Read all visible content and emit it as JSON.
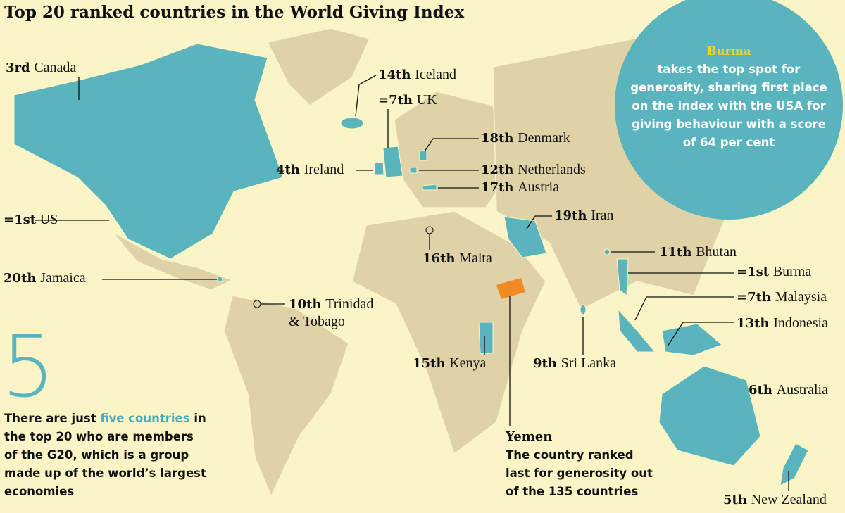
{
  "title": "Top 20 ranked countries in the World Giving Index",
  "callout": {
    "highlight": "Burma",
    "text": "takes the top spot for generosity, sharing first place on the index with the USA for giving behaviour with a score of 64 per cent"
  },
  "stat": {
    "number": "5",
    "text_before": "There are just",
    "highlight": "five countries",
    "text_after": "in the top 20 who are members of the G20, which is a group made up of the world’s largest economies"
  },
  "yemen": {
    "name": "Yemen",
    "text": "The country ranked last for generosity out of the 135 countries"
  },
  "labels": [
    {
      "rank": "3rd",
      "country": "Canada"
    },
    {
      "rank": "14th",
      "country": "Iceland"
    },
    {
      "rank": "=7th",
      "country": "UK"
    },
    {
      "rank": "18th",
      "country": "Denmark"
    },
    {
      "rank": "4th",
      "country": "Ireland"
    },
    {
      "rank": "12th",
      "country": "Netherlands"
    },
    {
      "rank": "17th",
      "country": "Austria"
    },
    {
      "rank": "=1st",
      "country": "US"
    },
    {
      "rank": "19th",
      "country": "Iran"
    },
    {
      "rank": "16th",
      "country": "Malta"
    },
    {
      "rank": "11th",
      "country": "Bhutan"
    },
    {
      "rank": "=1st",
      "country": "Burma"
    },
    {
      "rank": "20th",
      "country": "Jamaica"
    },
    {
      "rank": "=7th",
      "country": "Malaysia"
    },
    {
      "rank": "10th",
      "country": "Trinidad & Tobago"
    },
    {
      "rank": "13th",
      "country": "Indonesia"
    },
    {
      "rank": "15th",
      "country": "Kenya"
    },
    {
      "rank": "9th",
      "country": "Sri Lanka"
    },
    {
      "rank": "6th",
      "country": "Australia"
    },
    {
      "rank": "5th",
      "country": "New Zealand"
    }
  ]
}
